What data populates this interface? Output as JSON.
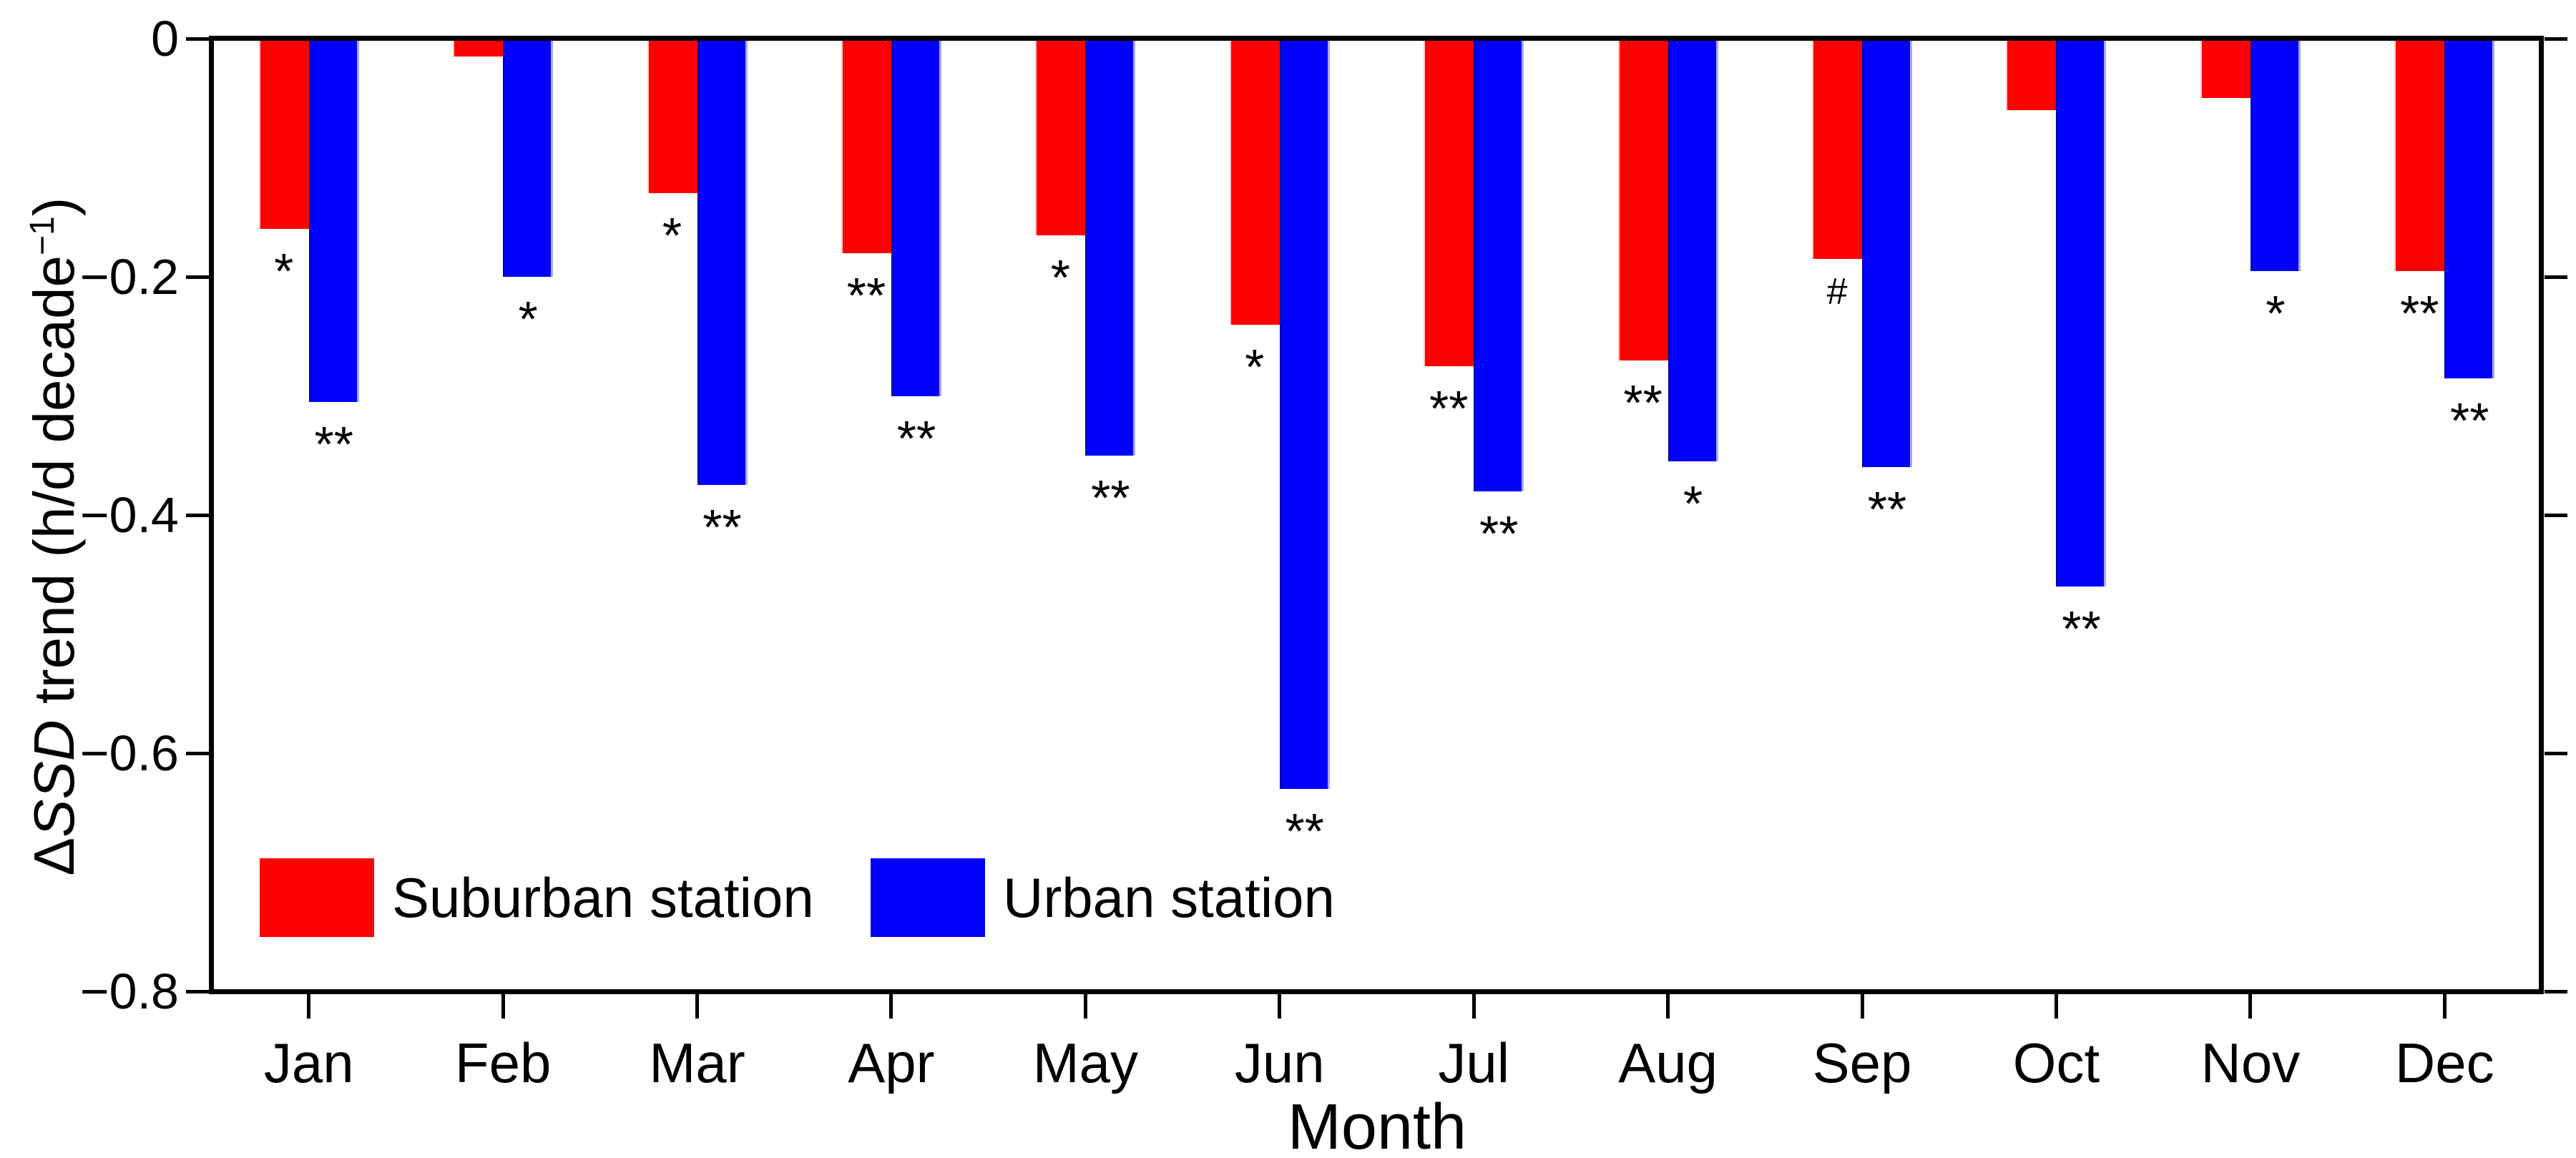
{
  "ylabel_parts": {
    "delta": "Δ",
    "italic": "SSD",
    "rest": " trend (h/d decade",
    "sup": "−1",
    "end": ")"
  },
  "legend": [
    {
      "label": "Suburban station",
      "color": "#ff0000"
    },
    {
      "label": "Urban station",
      "color": "#0000ff"
    }
  ],
  "chart_data": {
    "type": "bar",
    "title": "",
    "xlabel": "Month",
    "ylabel": "ΔSSD trend (h/d decade−1)",
    "ylim": [
      -0.8,
      0
    ],
    "yticks": [
      0,
      -0.2,
      -0.4,
      -0.6,
      -0.8
    ],
    "ytick_labels": [
      "0",
      "−0.2",
      "−0.4",
      "−0.6",
      "−0.8"
    ],
    "grid": false,
    "legend_position": "inside bottom-left",
    "categories": [
      "Jan",
      "Feb",
      "Mar",
      "Apr",
      "May",
      "Jun",
      "Jul",
      "Aug",
      "Sep",
      "Oct",
      "Nov",
      "Dec"
    ],
    "series": [
      {
        "name": "Suburban station",
        "color": "#ff0000",
        "values": [
          -0.16,
          -0.015,
          -0.13,
          -0.18,
          -0.165,
          -0.24,
          -0.275,
          -0.27,
          -0.185,
          -0.06,
          -0.05,
          -0.195
        ],
        "significance": [
          "*",
          "",
          "*",
          "**",
          "*",
          "*",
          "**",
          "**",
          "#",
          "",
          "",
          "**"
        ]
      },
      {
        "name": "Urban station",
        "color": "#0000ff",
        "values": [
          -0.305,
          -0.2,
          -0.375,
          -0.3,
          -0.35,
          -0.63,
          -0.38,
          -0.355,
          -0.36,
          -0.46,
          -0.195,
          -0.285
        ],
        "significance": [
          "**",
          "*",
          "**",
          "**",
          "**",
          "**",
          "**",
          "*",
          "**",
          "**",
          "*",
          "**"
        ]
      }
    ]
  }
}
